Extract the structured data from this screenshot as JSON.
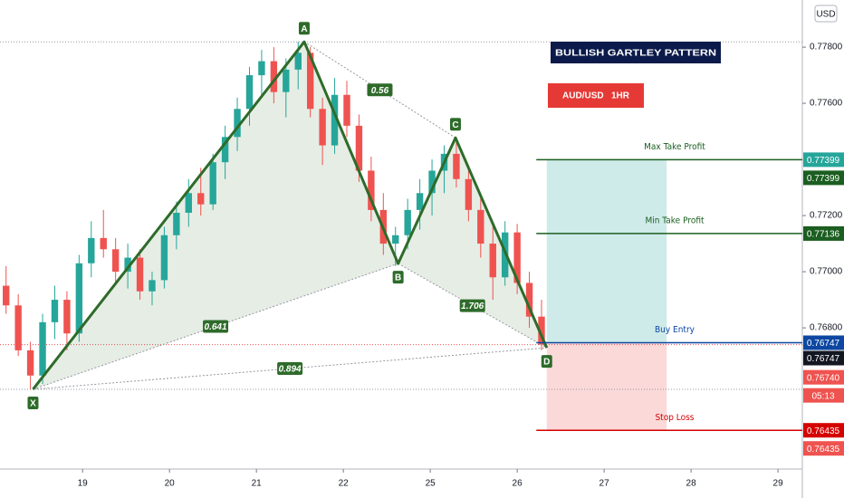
{
  "chart_data": {
    "type": "candlestick",
    "title": "BULLISH GARTLEY PATTERN",
    "subtitle": "AUD/USD   1HR",
    "currency": "USD",
    "up_color": "#26a69a",
    "down_color": "#ef5350",
    "xlim": [
      -0.95,
      8.27
    ],
    "xticks": [
      {
        "value": 0,
        "label": "19"
      },
      {
        "value": 1,
        "label": "20"
      },
      {
        "value": 2,
        "label": "21"
      },
      {
        "value": 3,
        "label": "22"
      },
      {
        "value": 4,
        "label": "25"
      },
      {
        "value": 5,
        "label": "26"
      },
      {
        "value": 6,
        "label": "27"
      },
      {
        "value": 7,
        "label": "28"
      },
      {
        "value": 8,
        "label": "29"
      }
    ],
    "ylim": [
      0.76297,
      0.77968
    ],
    "yticks": [
      {
        "value": 0.778,
        "label": "0.77800"
      },
      {
        "value": 0.776,
        "label": "0.77600"
      },
      {
        "value": 0.772,
        "label": "0.77200"
      },
      {
        "value": 0.77,
        "label": "0.77000"
      },
      {
        "value": 0.768,
        "label": "0.76800"
      }
    ],
    "candles": {
      "x": [
        -0.88,
        -0.74,
        -0.6,
        -0.46,
        -0.32,
        -0.18,
        -0.04,
        0.1,
        0.24,
        0.38,
        0.52,
        0.66,
        0.8,
        0.94,
        1.08,
        1.22,
        1.36,
        1.5,
        1.64,
        1.78,
        1.92,
        2.06,
        2.2,
        2.34,
        2.48,
        2.62,
        2.76,
        2.9,
        3.04,
        3.18,
        3.32,
        3.46,
        3.6,
        3.74,
        3.88,
        4.02,
        4.16,
        4.3,
        4.44,
        4.58,
        4.72,
        4.86,
        5.0,
        5.14,
        5.28
      ],
      "open": [
        0.7695,
        0.7688,
        0.7672,
        0.7663,
        0.7682,
        0.769,
        0.7678,
        0.7703,
        0.7712,
        0.7708,
        0.77,
        0.7705,
        0.7693,
        0.7697,
        0.7713,
        0.7721,
        0.7728,
        0.7724,
        0.7739,
        0.7748,
        0.7758,
        0.777,
        0.7775,
        0.7764,
        0.7772,
        0.7778,
        0.7758,
        0.7745,
        0.7763,
        0.7752,
        0.7736,
        0.7722,
        0.771,
        0.7713,
        0.7722,
        0.7728,
        0.7736,
        0.7742,
        0.7733,
        0.7722,
        0.771,
        0.7698,
        0.7714,
        0.7696,
        0.7684
      ],
      "high": [
        0.7702,
        0.7692,
        0.7675,
        0.7685,
        0.7695,
        0.7693,
        0.7706,
        0.7718,
        0.7722,
        0.7712,
        0.771,
        0.7708,
        0.77,
        0.7716,
        0.7725,
        0.7733,
        0.7737,
        0.7742,
        0.7752,
        0.7762,
        0.7773,
        0.7779,
        0.778,
        0.7776,
        0.7782,
        0.778,
        0.7762,
        0.7769,
        0.7768,
        0.7756,
        0.7741,
        0.7728,
        0.7716,
        0.7726,
        0.7733,
        0.774,
        0.7745,
        0.7748,
        0.7738,
        0.7726,
        0.7716,
        0.7718,
        0.7717,
        0.77,
        0.769
      ],
      "low": [
        0.7685,
        0.767,
        0.7658,
        0.766,
        0.7676,
        0.7672,
        0.7675,
        0.7698,
        0.7705,
        0.7696,
        0.7694,
        0.769,
        0.7688,
        0.7694,
        0.7708,
        0.7716,
        0.772,
        0.7722,
        0.7733,
        0.7743,
        0.7752,
        0.7762,
        0.776,
        0.7755,
        0.7765,
        0.7755,
        0.7738,
        0.7742,
        0.7748,
        0.7732,
        0.7718,
        0.7706,
        0.7702,
        0.7708,
        0.7715,
        0.772,
        0.7728,
        0.773,
        0.7718,
        0.7705,
        0.769,
        0.7695,
        0.7692,
        0.768,
        0.7672
      ],
      "close": [
        0.7688,
        0.7672,
        0.7663,
        0.7682,
        0.769,
        0.7678,
        0.7703,
        0.7712,
        0.7708,
        0.77,
        0.7705,
        0.7693,
        0.7697,
        0.7713,
        0.7721,
        0.7728,
        0.7724,
        0.7739,
        0.7748,
        0.7758,
        0.777,
        0.7775,
        0.7764,
        0.7772,
        0.7778,
        0.7758,
        0.7745,
        0.7763,
        0.7752,
        0.7736,
        0.7722,
        0.771,
        0.7713,
        0.7722,
        0.7728,
        0.7736,
        0.7742,
        0.7733,
        0.7722,
        0.771,
        0.7698,
        0.7714,
        0.7696,
        0.7684,
        0.7674
      ]
    },
    "pattern": {
      "color": "#2e6b2a",
      "points": [
        {
          "label": "X",
          "x": -0.57,
          "y": 0.76581
        },
        {
          "label": "A",
          "x": 2.55,
          "y": 0.77819
        },
        {
          "label": "B",
          "x": 3.63,
          "y": 0.77029
        },
        {
          "label": "C",
          "x": 4.29,
          "y": 0.77477
        },
        {
          "label": "D",
          "x": 5.34,
          "y": 0.76729
        }
      ],
      "ratios": [
        "0.56",
        "0.641",
        "1.706",
        "0.894"
      ]
    },
    "position": {
      "x_start": 5.34,
      "x_end": 6.72
    },
    "levels": [
      {
        "name": "Max Take Profit",
        "value": 0.77399,
        "color": "#1b5e20"
      },
      {
        "name": "Min Take Profit",
        "value": 0.77136,
        "color": "#1b5e20"
      },
      {
        "name": "Buy Entry",
        "value": 0.76747,
        "color": "#0d47a1"
      },
      {
        "name": "Stop Loss",
        "value": 0.76435,
        "color": "#d50000"
      }
    ],
    "current_price": {
      "value": 0.7674,
      "label": "0.76740"
    },
    "countdown": "05:13"
  }
}
